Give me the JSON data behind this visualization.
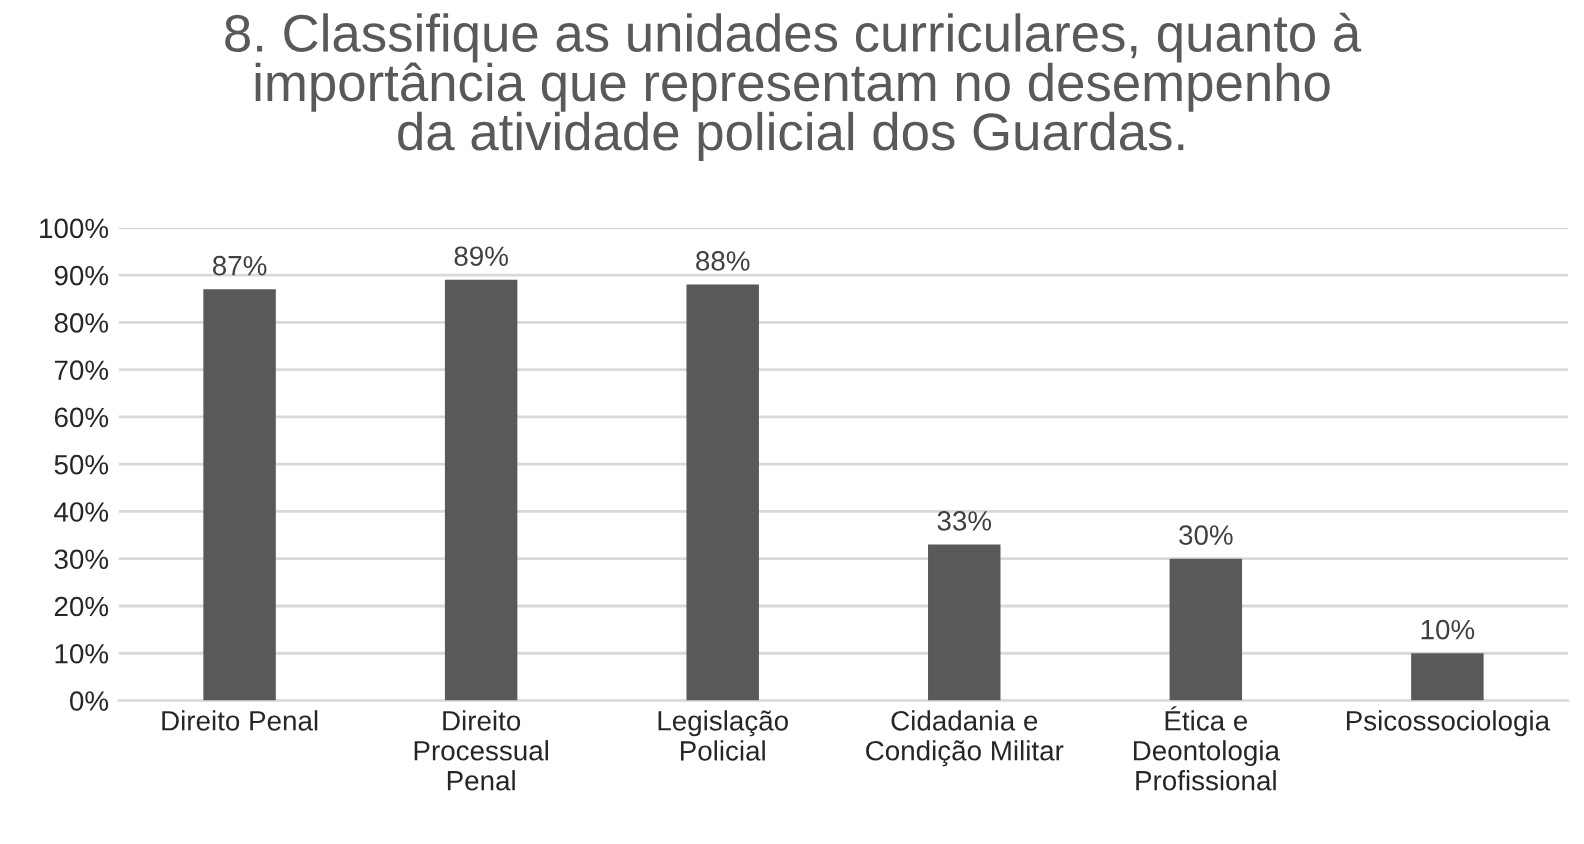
{
  "chart_data": {
    "type": "bar",
    "title": "8. Classifique as unidades curriculares, quanto à\nimportância que representam no desempenho\nda atividade policial dos Guardas.",
    "categories": [
      "Direito Penal",
      "Direito\nProcessual\nPenal",
      "Legislação\nPolicial",
      "Cidadania e\nCondição Militar",
      "Ética e\nDeontologia\nProfissional",
      "Psicossociologia"
    ],
    "values": [
      87,
      89,
      88,
      33,
      30,
      10
    ],
    "value_labels": [
      "87%",
      "89%",
      "88%",
      "33%",
      "30%",
      "10%"
    ],
    "color": "#595959",
    "ylim": [
      0,
      100
    ],
    "yticks": [
      {
        "value": 0,
        "label": "0%"
      },
      {
        "value": 10,
        "label": "10%"
      },
      {
        "value": 20,
        "label": "20%"
      },
      {
        "value": 30,
        "label": "30%"
      },
      {
        "value": 40,
        "label": "40%"
      },
      {
        "value": 50,
        "label": "50%"
      },
      {
        "value": 60,
        "label": "60%"
      },
      {
        "value": 70,
        "label": "70%"
      },
      {
        "value": 80,
        "label": "80%"
      },
      {
        "value": 90,
        "label": "90%"
      },
      {
        "value": 100,
        "label": "100%"
      }
    ],
    "grid": "y"
  }
}
